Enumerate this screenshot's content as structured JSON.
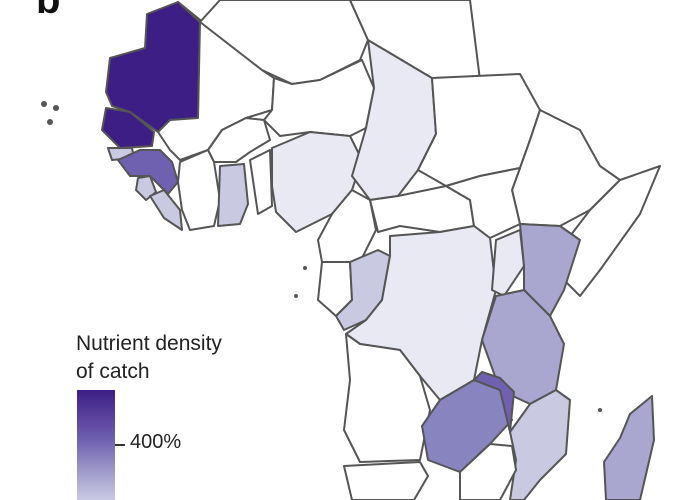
{
  "panel": {
    "letter": "b"
  },
  "legend": {
    "title_line1": "Nutrient density",
    "title_line2": "of catch",
    "tick_label": "400%"
  },
  "colors": {
    "highest": "#3d1e85",
    "high": "#5b4aa3",
    "mid": "#8784c0",
    "low": "#a9a6d0",
    "lower": "#c9c9e2",
    "lowest": "#e9e9f3",
    "no_data": "#ffffff",
    "border": "#555555"
  }
}
